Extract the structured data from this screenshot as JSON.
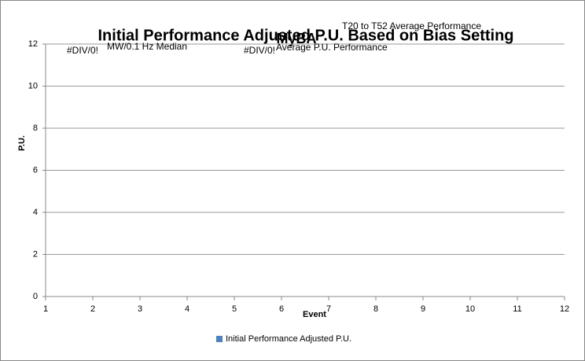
{
  "chart_data": {
    "type": "bar",
    "title": "Initial Performance Adjusted P.U. Based on Bias Setting",
    "subtitle": "MyBA",
    "annotations": [
      "T20 to T52 Average Performance",
      "#DIV/0!",
      "MW/0.1 Hz Median",
      "#DIV/0!",
      "Average P.U. Performance"
    ],
    "x_label": "Event",
    "y_label": "P.U.",
    "x": [],
    "series": [
      {
        "name": "Initial Performance Adjusted P.U.",
        "color": "#4f81bd",
        "values": []
      }
    ],
    "xlim": [
      1,
      12
    ],
    "xticks": [
      1,
      2,
      3,
      4,
      5,
      6,
      7,
      8,
      9,
      10,
      11,
      12
    ],
    "ylim": [
      0,
      12
    ],
    "yticks": [
      0,
      2,
      4,
      6,
      8,
      10,
      12
    ],
    "grid": true,
    "legend": "bottom"
  }
}
